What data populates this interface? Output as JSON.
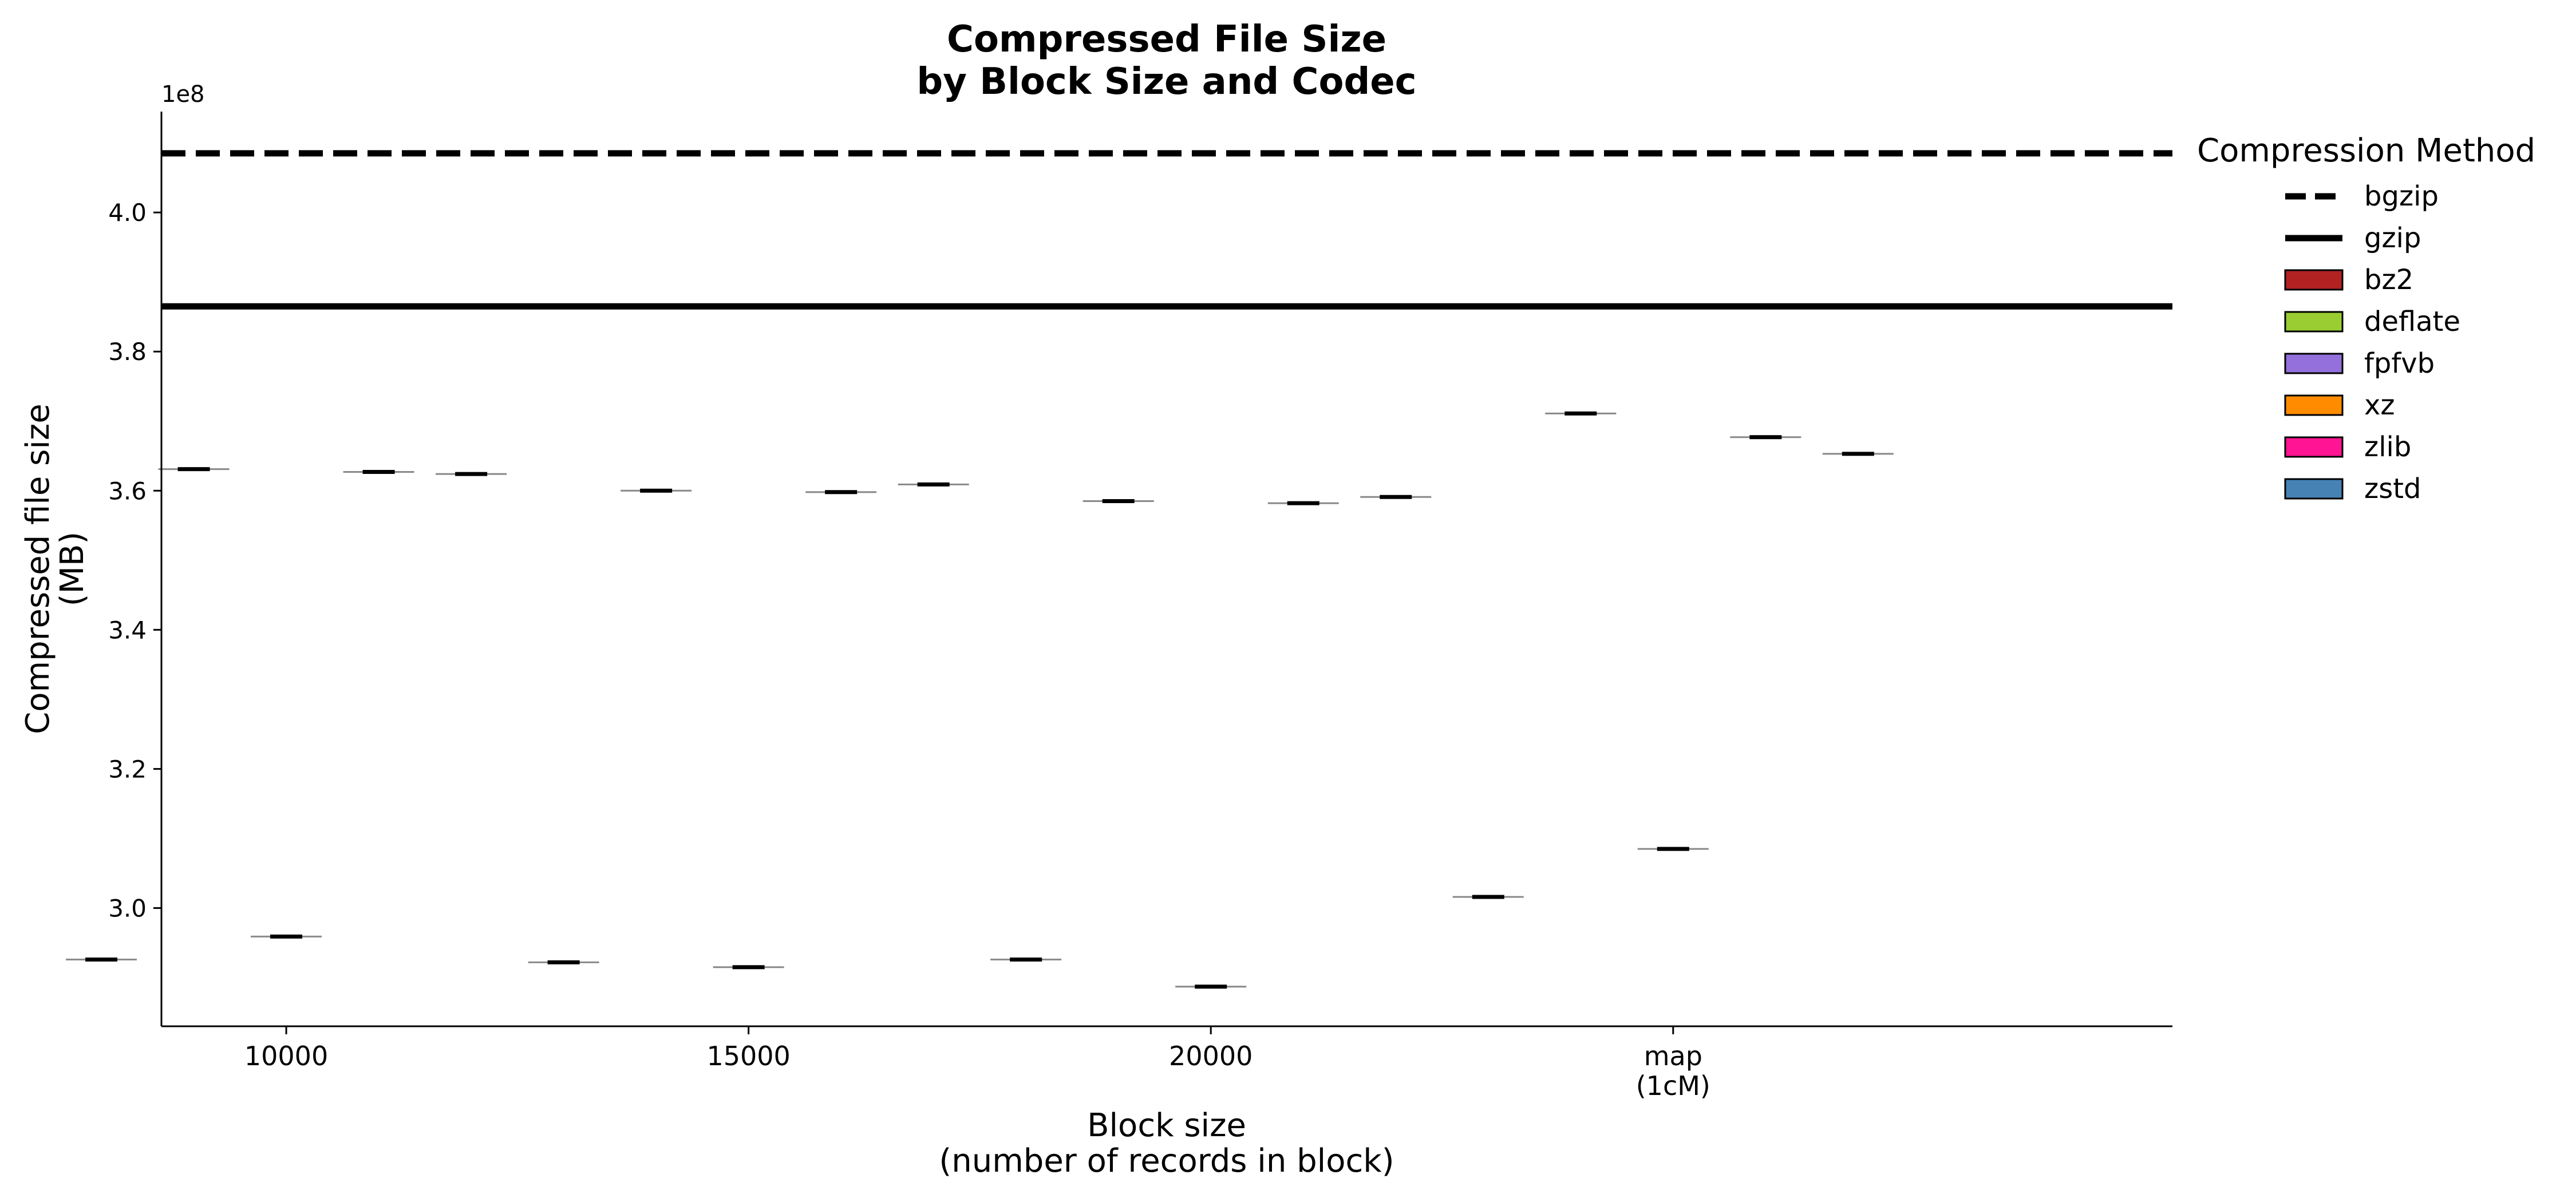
{
  "chart_data": {
    "type": "violin",
    "title": [
      "Compressed File Size",
      "by Block Size and Codec"
    ],
    "xlabel": [
      "Block size",
      "(number of records in block)"
    ],
    "ylabel": [
      "Compressed file size",
      "(MB)"
    ],
    "y_offset_label": "1e8",
    "ylim": [
      2.83,
      4.145
    ],
    "y_ticks": [
      "3.0",
      "3.2",
      "3.4",
      "3.6",
      "3.8",
      "4.0"
    ],
    "x_ticks": [
      {
        "label": [
          "10000"
        ],
        "pos": 0
      },
      {
        "label": [
          "15000"
        ],
        "pos": 1
      },
      {
        "label": [
          "20000"
        ],
        "pos": 2
      },
      {
        "label": [
          "map",
          "(1cM)"
        ],
        "pos": 3
      }
    ],
    "xlim": [
      -0.27,
      4.08
    ],
    "reference_lines": [
      {
        "name": "bgzip",
        "value": 4.085,
        "style": "dashed"
      },
      {
        "name": "gzip",
        "value": 3.865,
        "style": "solid"
      }
    ],
    "series": [
      {
        "name": "bz2",
        "color": "#b22222",
        "x": [
          0,
          1,
          2,
          3
        ],
        "values": [
          2.926,
          2.922,
          2.926,
          3.016
        ]
      },
      {
        "name": "deflate",
        "color": "#9acd32",
        "x": [
          0,
          1,
          2,
          3
        ],
        "values": [
          3.631,
          3.6,
          3.585,
          3.711
        ]
      },
      {
        "name": "fpfvb",
        "color": "#9370db",
        "x": [
          0,
          1,
          2,
          3
        ],
        "values": [
          2.959,
          2.915,
          2.887,
          3.085
        ]
      },
      {
        "name": "xz",
        "color": "#ff8c00",
        "x": [
          0,
          1,
          2,
          3
        ],
        "values": [
          3.627,
          3.598,
          3.582,
          3.677
        ]
      },
      {
        "name": "zlib",
        "color": "#ff1493",
        "x": [
          0,
          1,
          2,
          3
        ],
        "values": [
          3.624,
          3.609,
          3.591,
          3.653
        ]
      }
    ],
    "legend": {
      "title": "Compression Method",
      "placement": "right",
      "items": [
        {
          "name": "bgzip",
          "kind": "dashed-line"
        },
        {
          "name": "gzip",
          "kind": "solid-line"
        },
        {
          "name": "bz2",
          "kind": "patch",
          "color": "#b22222"
        },
        {
          "name": "deflate",
          "kind": "patch",
          "color": "#9acd32"
        },
        {
          "name": "fpfvb",
          "kind": "patch",
          "color": "#9370db"
        },
        {
          "name": "xz",
          "kind": "patch",
          "color": "#ff8c00"
        },
        {
          "name": "zlib",
          "kind": "patch",
          "color": "#ff1493"
        },
        {
          "name": "zstd",
          "kind": "patch",
          "color": "#4682b4"
        }
      ]
    }
  }
}
